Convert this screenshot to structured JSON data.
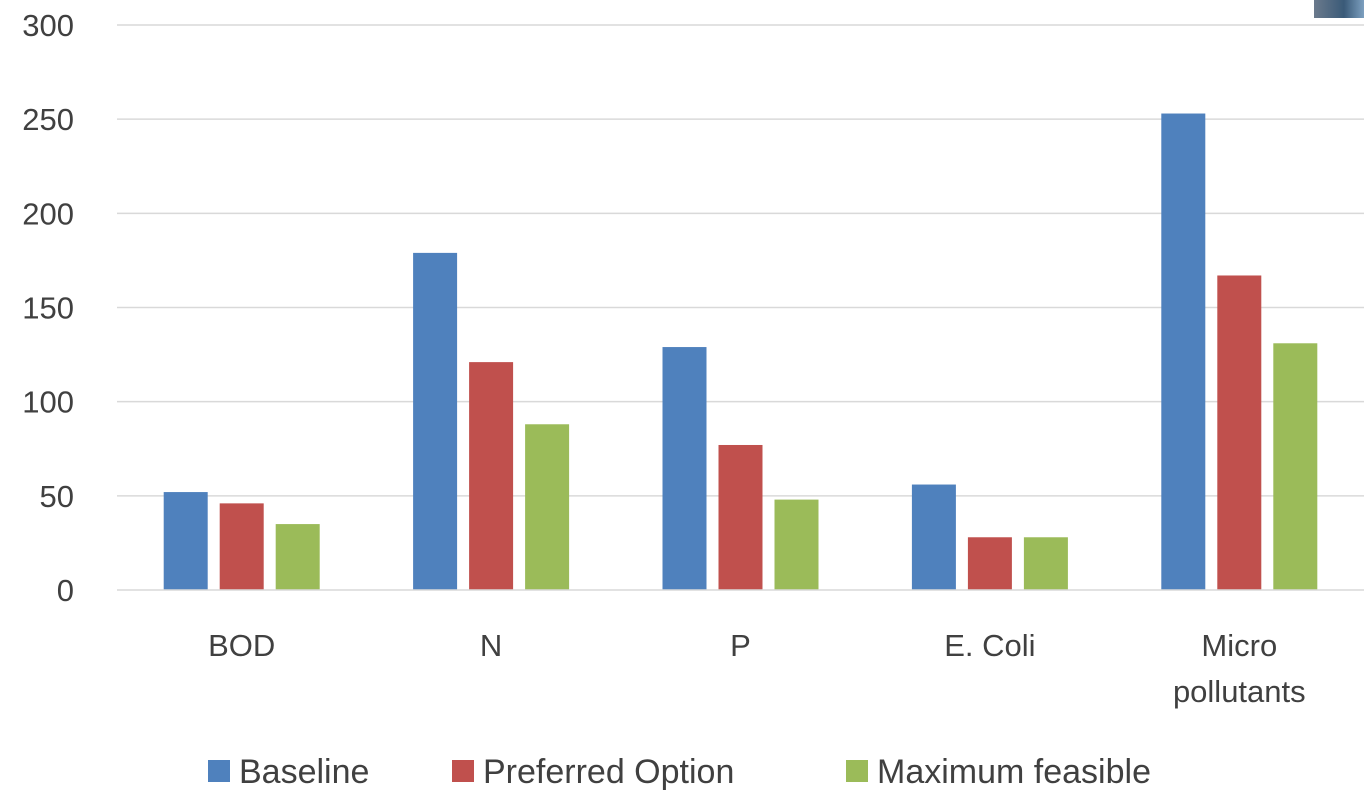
{
  "chart_data": {
    "type": "bar",
    "categories": [
      "BOD",
      "N",
      "P",
      "E. Coli",
      "Micro pollutants"
    ],
    "category_lines": [
      [
        "BOD"
      ],
      [
        "N"
      ],
      [
        "P"
      ],
      [
        "E. Coli"
      ],
      [
        "Micro",
        "pollutants"
      ]
    ],
    "series": [
      {
        "name": "Baseline",
        "color": "#4F81BD",
        "values": [
          52,
          179,
          129,
          56,
          253
        ]
      },
      {
        "name": "Preferred Option",
        "color": "#C0504D",
        "values": [
          46,
          121,
          77,
          28,
          167
        ]
      },
      {
        "name": "Maximum feasible",
        "color": "#9BBB59",
        "values": [
          35,
          88,
          48,
          28,
          131
        ]
      }
    ],
    "ylim": [
      0,
      300
    ],
    "yticks": [
      0,
      50,
      100,
      150,
      200,
      250,
      300
    ],
    "grid": true,
    "legend_position": "bottom",
    "title": "",
    "xlabel": "",
    "ylabel": ""
  }
}
